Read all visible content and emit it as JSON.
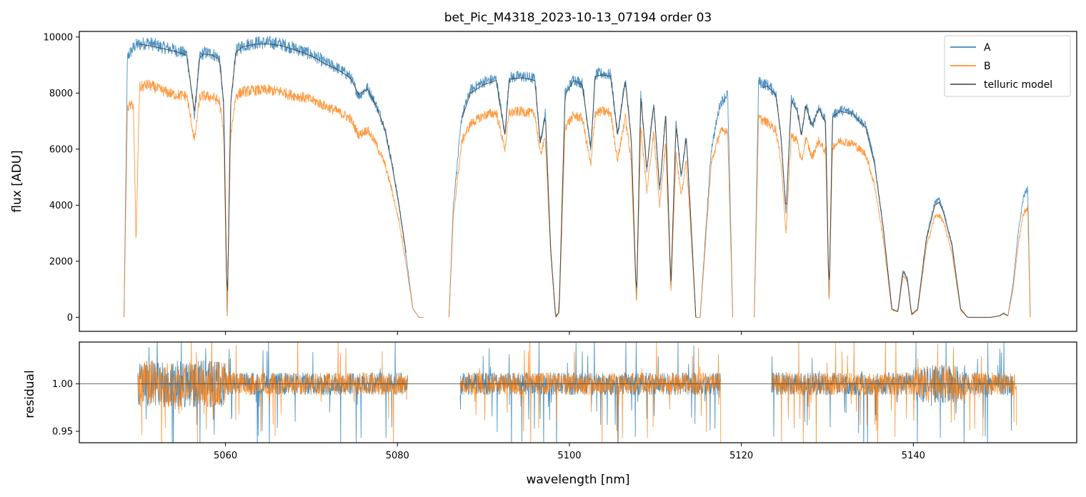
{
  "chart_data": [
    {
      "type": "line",
      "title": "bet_Pic_M4318_2023-10-13_07194  order 03",
      "xlabel": "",
      "ylabel": "flux [ADU]",
      "xlim": [
        5043,
        5159
      ],
      "ylim": [
        -500,
        10200
      ],
      "yticks": [
        0,
        2000,
        4000,
        6000,
        8000,
        10000
      ],
      "ytick_labels": [
        "0",
        "2000",
        "4000",
        "6000",
        "8000",
        "10000"
      ],
      "xticks": [
        5060,
        5080,
        5100,
        5120,
        5140
      ],
      "legend_position": "top-right",
      "series": [
        {
          "name": "A",
          "color": "#1f77b4",
          "segments": [
            {
              "x": [
                5048.2,
                5048.6,
                5049.5,
                5051.0,
                5052.5,
                5054.0,
                5055.5,
                5056.4,
                5057.0,
                5057.5,
                5058.5,
                5059.3,
                5059.8,
                5060.2,
                5060.6,
                5061.2,
                5062.0,
                5063.5,
                5065.0,
                5066.5,
                5067.5,
                5069.0,
                5070.5,
                5071.5,
                5073.0,
                5074.5,
                5075.5,
                5076.5,
                5077.5,
                5078.5,
                5079.3,
                5080.2,
                5081.0,
                5081.8,
                5082.5,
                5083.0
              ],
              "y": [
                0,
                9300,
                9700,
                9800,
                9650,
                9550,
                9400,
                7200,
                9300,
                9450,
                9400,
                9250,
                7500,
                0,
                7500,
                9500,
                9700,
                9800,
                9800,
                9750,
                9650,
                9500,
                9300,
                9100,
                8900,
                8600,
                7900,
                8200,
                7600,
                6800,
                5600,
                4000,
                2200,
                300,
                0,
                0
              ]
            },
            {
              "x": [
                5086.0,
                5086.5,
                5087.5,
                5088.5,
                5090.0,
                5091.5,
                5092.5,
                5093.0,
                5094.5,
                5096.0,
                5096.6,
                5097.2,
                5097.8,
                5098.4,
                5098.8,
                5099.5,
                5100.5,
                5101.5,
                5102.5,
                5103.0,
                5103.8,
                5104.8,
                5105.6,
                5106.5,
                5107.2,
                5107.8,
                5108.3,
                5109.0,
                5109.8,
                5110.5,
                5111.2,
                5111.8,
                5112.4,
                5113.0,
                5113.6,
                5114.2,
                5114.7,
                5115.2,
                5116.5,
                5117.5,
                5118.4,
                5119.0
              ],
              "y": [
                0,
                4000,
                7200,
                8100,
                8400,
                8500,
                6500,
                8550,
                8600,
                8500,
                6200,
                7300,
                2500,
                0,
                200,
                8000,
                8500,
                8350,
                6000,
                8650,
                8700,
                8650,
                6500,
                8500,
                6300,
                500,
                8000,
                5200,
                7700,
                4500,
                7300,
                1000,
                7000,
                5000,
                6500,
                3000,
                0,
                0,
                6000,
                7600,
                8000,
                0
              ]
            },
            {
              "x": [
                5121.5,
                5122.0,
                5123.0,
                5124.0,
                5124.6,
                5125.2,
                5125.8,
                5126.5,
                5127.0,
                5127.5,
                5128.2,
                5129.0,
                5129.8,
                5130.2,
                5130.6,
                5131.5,
                5133.0,
                5134.5,
                5135.5,
                5136.5,
                5137.5,
                5138.2,
                5138.8,
                5139.3,
                5139.8,
                5140.5,
                5141.5,
                5142.5,
                5143.0,
                5143.5,
                5144.5,
                5145.5,
                5146.3,
                5147.0,
                5148.0,
                5149.0,
                5150.0,
                5150.5,
                5151.0,
                5151.6,
                5152.2,
                5152.8,
                5153.3,
                5153.6
              ],
              "y": [
                0,
                8400,
                8300,
                8000,
                6500,
                3700,
                7800,
                7400,
                6500,
                7600,
                6800,
                7500,
                7000,
                500,
                7200,
                7400,
                7300,
                6800,
                5500,
                3200,
                300,
                200,
                1700,
                1400,
                100,
                300,
                2800,
                4100,
                4200,
                3800,
                2600,
                300,
                0,
                0,
                0,
                0,
                50,
                150,
                50,
                1200,
                3000,
                4300,
                4600,
                0
              ]
            }
          ]
        },
        {
          "name": "B",
          "color": "#ff7f0e",
          "segments": [
            {
              "x": [
                5048.2,
                5048.6,
                5049.3,
                5049.6,
                5050.0,
                5051.0,
                5052.5,
                5054.0,
                5055.5,
                5056.4,
                5057.0,
                5057.5,
                5058.5,
                5059.3,
                5059.8,
                5060.2,
                5060.6,
                5061.2,
                5062.0,
                5063.5,
                5065.0,
                5066.5,
                5067.5,
                5069.0,
                5070.5,
                5071.5,
                5073.0,
                5074.5,
                5075.5,
                5076.5,
                5077.5,
                5078.5,
                5079.3,
                5080.2,
                5081.0,
                5081.8,
                5082.5,
                5083.0
              ],
              "y": [
                0,
                7500,
                7600,
                2600,
                8200,
                8300,
                8100,
                7950,
                7900,
                6300,
                7850,
                7900,
                7850,
                7700,
                6500,
                0,
                6500,
                7900,
                8050,
                8100,
                8100,
                8050,
                7950,
                7850,
                7700,
                7550,
                7350,
                7100,
                6500,
                6700,
                6200,
                5500,
                4600,
                3400,
                1900,
                300,
                0,
                0
              ]
            },
            {
              "x": [
                5086.0,
                5086.5,
                5087.5,
                5088.5,
                5090.0,
                5091.5,
                5092.5,
                5093.0,
                5094.5,
                5096.0,
                5096.6,
                5097.2,
                5097.8,
                5098.4,
                5098.8,
                5099.5,
                5100.5,
                5101.5,
                5102.5,
                5103.0,
                5103.8,
                5104.8,
                5105.6,
                5106.5,
                5107.2,
                5107.8,
                5108.3,
                5109.0,
                5109.8,
                5110.5,
                5111.2,
                5111.8,
                5112.4,
                5113.0,
                5113.6,
                5114.2,
                5114.7,
                5115.2,
                5116.5,
                5117.5,
                5118.4,
                5119.0
              ],
              "y": [
                0,
                3600,
                6300,
                6900,
                7200,
                7300,
                6000,
                7300,
                7350,
                7250,
                5800,
                6400,
                2400,
                0,
                150,
                6800,
                7200,
                7100,
                5400,
                7300,
                7350,
                7300,
                5600,
                7150,
                5500,
                500,
                6800,
                4500,
                6600,
                4000,
                6200,
                900,
                5900,
                4300,
                5600,
                2700,
                0,
                0,
                5500,
                6600,
                6700,
                0
              ]
            },
            {
              "x": [
                5121.5,
                5122.0,
                5123.0,
                5124.0,
                5124.6,
                5125.2,
                5125.8,
                5126.5,
                5127.0,
                5127.5,
                5128.2,
                5129.0,
                5129.8,
                5130.2,
                5130.6,
                5131.5,
                5133.0,
                5134.5,
                5135.5,
                5136.5,
                5137.5,
                5138.2,
                5138.8,
                5139.3,
                5139.8,
                5140.5,
                5141.5,
                5142.5,
                5143.0,
                5143.5,
                5144.5,
                5145.5,
                5146.3,
                5147.0,
                5148.0,
                5149.0,
                5150.0,
                5150.5,
                5151.0,
                5151.6,
                5152.2,
                5152.8,
                5153.3,
                5153.6
              ],
              "y": [
                0,
                7100,
                6950,
                6700,
                5600,
                3000,
                6500,
                6300,
                5500,
                6400,
                5700,
                6300,
                5900,
                500,
                6100,
                6300,
                6200,
                5800,
                4700,
                2800,
                250,
                200,
                1500,
                1300,
                80,
                250,
                2500,
                3600,
                3650,
                3400,
                2300,
                250,
                0,
                0,
                0,
                0,
                50,
                120,
                50,
                1000,
                2600,
                3700,
                3900,
                0
              ]
            }
          ]
        },
        {
          "name": "telluric model",
          "color": "#404040",
          "segments": [
            {
              "x": [
                5050.0,
                5051.0,
                5052.5,
                5054.0,
                5055.5,
                5056.4,
                5057.0,
                5057.5,
                5058.5,
                5059.3,
                5059.8,
                5060.2,
                5060.6,
                5061.2,
                5062.0,
                5063.5,
                5065.0,
                5066.5,
                5067.5,
                5069.0,
                5070.5,
                5071.5,
                5073.0,
                5074.5,
                5075.5,
                5076.5,
                5077.5,
                5078.5,
                5079.3,
                5080.2,
                5081.0
              ],
              "y": [
                9750,
                9700,
                9600,
                9500,
                9350,
                7300,
                9250,
                9400,
                9350,
                9200,
                7600,
                0,
                7600,
                9450,
                9650,
                9750,
                9750,
                9700,
                9600,
                9450,
                9250,
                9050,
                8850,
                8550,
                7950,
                8150,
                7550,
                6750,
                5550,
                3950,
                2300
              ]
            },
            {
              "x": [
                5087.5,
                5088.5,
                5090.0,
                5091.5,
                5092.5,
                5093.0,
                5094.5,
                5096.0,
                5096.6,
                5097.2,
                5097.8,
                5098.4,
                5098.8,
                5099.5,
                5100.5,
                5101.5,
                5102.5,
                5103.0,
                5103.8,
                5104.8,
                5105.6,
                5106.5,
                5107.2,
                5107.8,
                5108.3,
                5109.0,
                5109.8,
                5110.5,
                5111.2,
                5111.8,
                5112.4,
                5113.0,
                5113.6,
                5114.2,
                5114.7
              ],
              "y": [
                7100,
                8000,
                8300,
                8450,
                6500,
                8500,
                8550,
                8450,
                6200,
                7250,
                2500,
                0,
                200,
                7950,
                8450,
                8300,
                6000,
                8600,
                8650,
                8600,
                6500,
                8450,
                6300,
                500,
                7950,
                5200,
                7650,
                4500,
                7250,
                1000,
                6950,
                5000,
                6450,
                3000,
                0
              ]
            },
            {
              "x": [
                5122.5,
                5123.0,
                5124.0,
                5124.6,
                5125.2,
                5125.8,
                5126.5,
                5127.0,
                5127.5,
                5128.2,
                5129.0,
                5129.8,
                5130.2,
                5130.6,
                5131.5,
                5133.0,
                5134.5,
                5135.5,
                5136.5,
                5137.5,
                5138.2,
                5138.8,
                5139.3,
                5139.8,
                5140.5,
                5141.5,
                5142.5,
                5143.0,
                5143.5,
                5144.5,
                5145.5,
                5146.3,
                5147.0,
                5148.0,
                5149.0,
                5150.0,
                5150.5,
                5151.0
              ],
              "y": [
                8200,
                8250,
                7950,
                6500,
                3700,
                7750,
                7350,
                6500,
                7550,
                6800,
                7450,
                6950,
                500,
                7150,
                7350,
                7250,
                6750,
                5450,
                3200,
                300,
                200,
                1650,
                1350,
                100,
                300,
                2750,
                4000,
                4100,
                3750,
                2550,
                300,
                0,
                0,
                0,
                0,
                50,
                150,
                50
              ]
            }
          ]
        }
      ]
    },
    {
      "type": "line",
      "title": "",
      "xlabel": "wavelength [nm]",
      "ylabel": "residual",
      "xlim": [
        5043,
        5159
      ],
      "ylim": [
        0.938,
        1.044
      ],
      "yticks": [
        0.95,
        1.0
      ],
      "ytick_labels": [
        "0.95",
        "1.00"
      ],
      "xticks": [
        5060,
        5080,
        5100,
        5120,
        5140
      ],
      "xtick_labels": [
        "5060",
        "5080",
        "5100",
        "5120",
        "5140"
      ],
      "reference_line": 1.0,
      "series": [
        {
          "name": "A",
          "color": "#1f77b4",
          "ranges": [
            [
              5049.8,
              5081.2
            ],
            [
              5087.3,
              5117.6
            ],
            [
              5123.5,
              5151.5
            ]
          ]
        },
        {
          "name": "B",
          "color": "#ff7f0e",
          "ranges": [
            [
              5049.8,
              5081.2
            ],
            [
              5087.3,
              5117.6
            ],
            [
              5123.5,
              5152.0
            ]
          ]
        }
      ]
    }
  ],
  "legend": {
    "items": [
      {
        "label": "A",
        "color": "#1f77b4"
      },
      {
        "label": "B",
        "color": "#ff7f0e"
      },
      {
        "label": "telluric model",
        "color": "#404040"
      }
    ]
  }
}
